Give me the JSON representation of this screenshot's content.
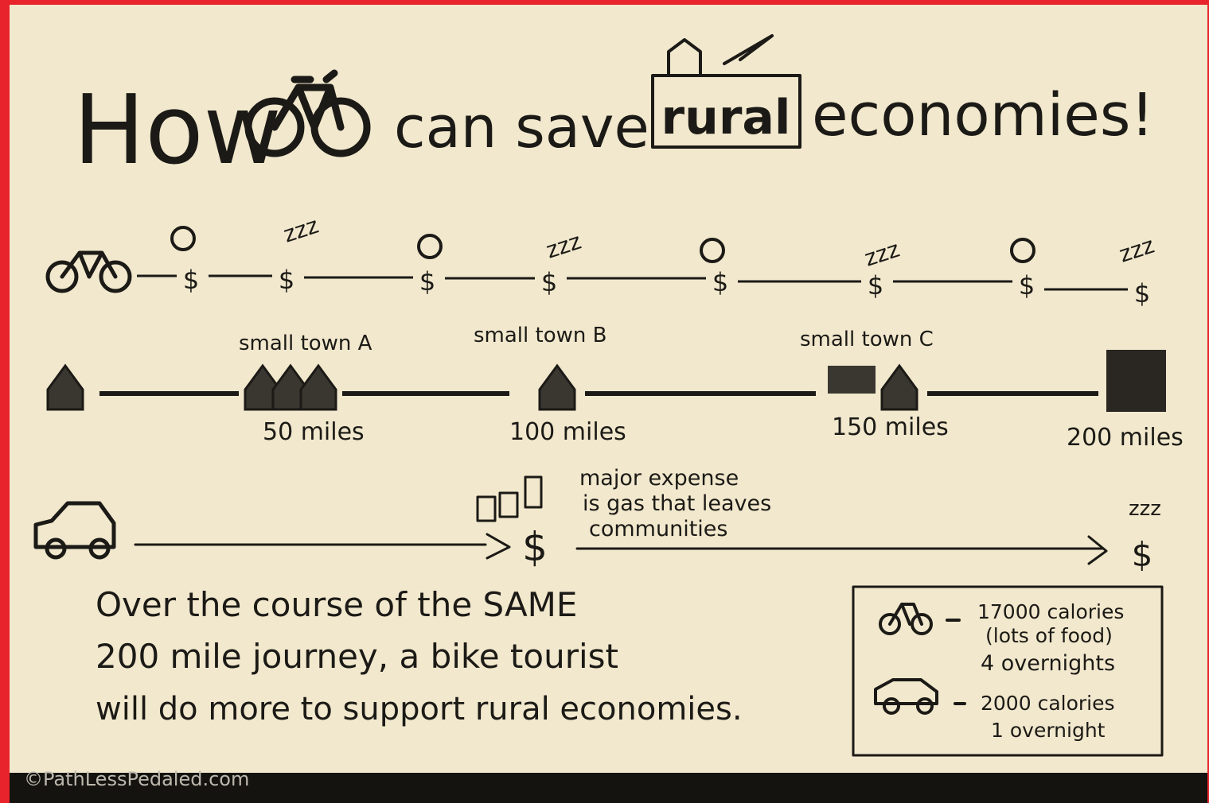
{
  "title": {
    "prefix": "How",
    "middle": "can save",
    "highlight": "rural",
    "suffix": "economies!"
  },
  "bike_route": {
    "dollars": [
      "$",
      "$",
      "$",
      "$",
      "$",
      "$",
      "$",
      "$"
    ],
    "sleeps": [
      "zzz",
      "zzz",
      "zzz",
      "zzz"
    ]
  },
  "town_route": {
    "towns": [
      "small town A",
      "small town B",
      "small town C"
    ],
    "distances": [
      "50 miles",
      "100 miles",
      "150 miles",
      "200 miles"
    ]
  },
  "car_route": {
    "dollars": [
      "$",
      "$"
    ],
    "note": [
      "major expense",
      "is gas that leaves",
      "communities"
    ],
    "sleep": "zzz"
  },
  "summary": [
    "Over the course of the SAME",
    "200 mile journey, a bike tourist",
    "will do more to support rural economies."
  ],
  "legend": {
    "bike": [
      "17000 calories",
      "(lots of food)",
      "4 overnights"
    ],
    "car": [
      "2000 calories",
      "1 overnight"
    ]
  },
  "watermark": "©PathLessPedaled.com"
}
